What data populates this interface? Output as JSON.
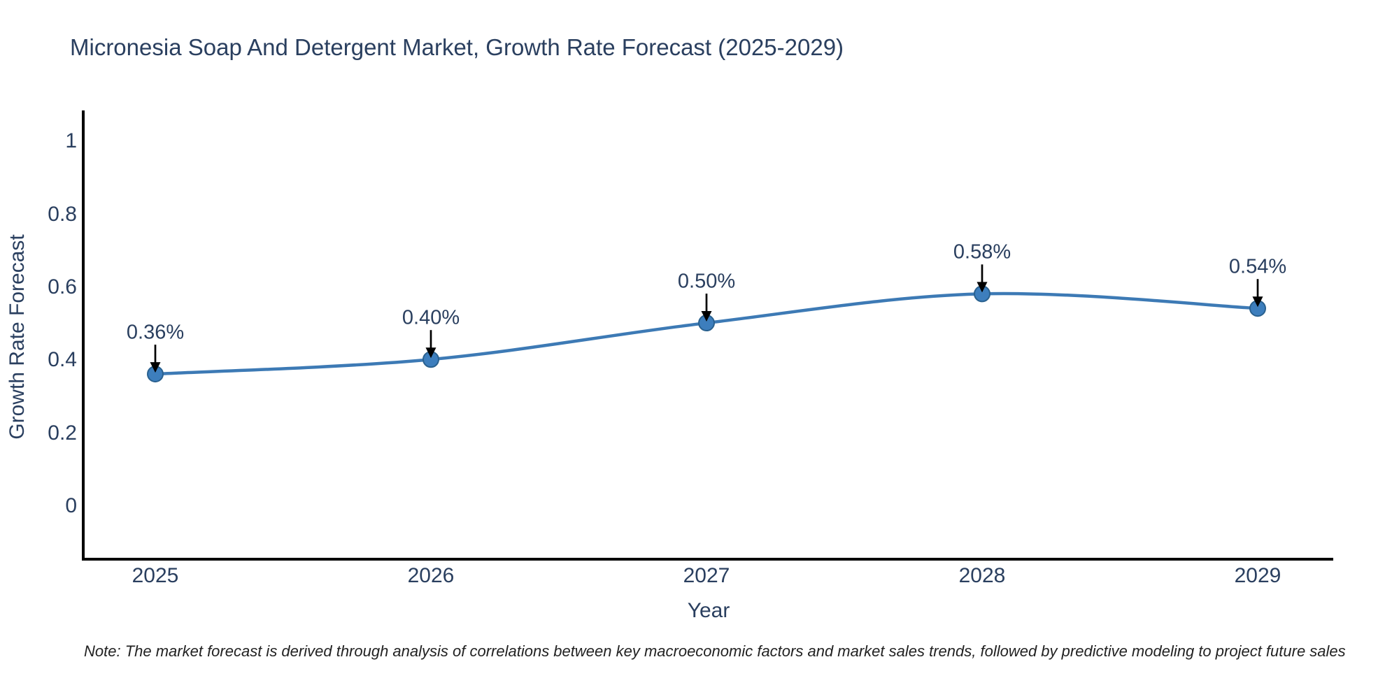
{
  "chart_data": {
    "type": "line",
    "title": "Micronesia Soap And Detergent Market, Growth Rate Forecast (2025-2029)",
    "x": [
      "2025",
      "2026",
      "2027",
      "2028",
      "2029"
    ],
    "series": [
      {
        "name": "Growth Rate Forecast",
        "values": [
          0.36,
          0.4,
          0.5,
          0.58,
          0.54
        ]
      }
    ],
    "point_labels": [
      "0.36%",
      "0.40%",
      "0.50%",
      "0.58%",
      "0.54%"
    ],
    "xlabel": "Year",
    "ylabel": "Growth Rate Forecast",
    "yticks": [
      0,
      0.2,
      0.4,
      0.6,
      0.8,
      1
    ],
    "ytick_labels": [
      "0",
      "0.2",
      "0.4",
      "0.6",
      "0.8",
      "1"
    ],
    "ylim": [
      -0.148,
      1.083
    ],
    "grid": false,
    "legend": "none",
    "line_color": "#3d7ab5",
    "marker_color": "#3d7ebd",
    "marker_edge_color": "#2a618f",
    "axis_color": "#000000",
    "arrow_color": "#000000",
    "text_color": "#2a3f5f",
    "note": "Note: The market forecast is derived through analysis of correlations between key macroeconomic factors and market sales trends, followed by predictive modeling to project future sales"
  }
}
